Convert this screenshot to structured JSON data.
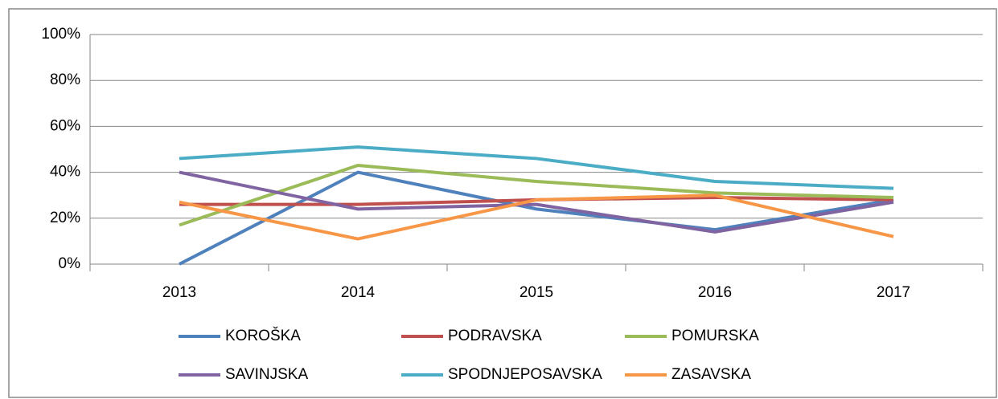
{
  "chart_data": {
    "type": "line",
    "categories": [
      "2013",
      "2014",
      "2015",
      "2016",
      "2017"
    ],
    "series": [
      {
        "name": "KOROŠKA",
        "color": "#4f81bd",
        "values": [
          0,
          40,
          24,
          15,
          28
        ]
      },
      {
        "name": "PODRAVSKA",
        "color": "#c0504d",
        "values": [
          26,
          26,
          28,
          29,
          28
        ]
      },
      {
        "name": "POMURSKA",
        "color": "#9bbb59",
        "values": [
          17,
          43,
          36,
          31,
          29
        ]
      },
      {
        "name": "SAVINJSKA",
        "color": "#8064a2",
        "values": [
          40,
          24,
          26,
          14,
          27
        ]
      },
      {
        "name": "SPODNJEPOSAVSKA",
        "color": "#4bacc6",
        "values": [
          46,
          51,
          46,
          36,
          33
        ]
      },
      {
        "name": "ZASAVSKA",
        "color": "#f79646",
        "values": [
          27,
          11,
          28,
          30,
          12
        ]
      }
    ],
    "ylim": [
      0,
      100
    ],
    "yticks": [
      {
        "value": 0,
        "label": "0%"
      },
      {
        "value": 20,
        "label": "20%"
      },
      {
        "value": 40,
        "label": "40%"
      },
      {
        "value": 60,
        "label": "60%"
      },
      {
        "value": 80,
        "label": "80%"
      },
      {
        "value": 100,
        "label": "100%"
      }
    ],
    "grid": true,
    "legend": "bottom"
  }
}
